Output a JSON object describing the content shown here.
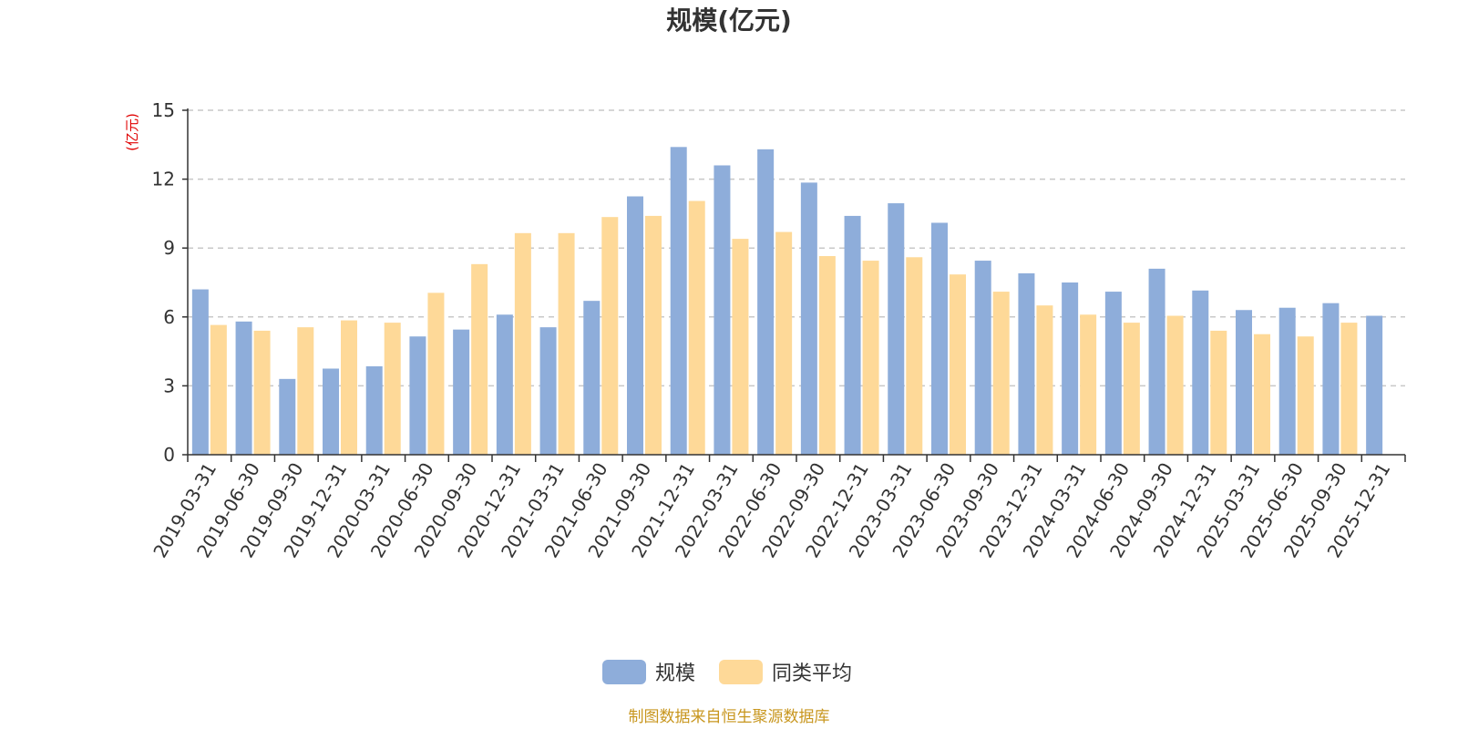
{
  "chart_data": {
    "type": "bar",
    "title": "规模(亿元)",
    "ylabel": "(亿元)",
    "ylim": [
      0,
      15
    ],
    "yticks": [
      "0",
      "3",
      "6",
      "9",
      "12",
      "15"
    ],
    "grid": true,
    "legend_position": "bottom-center",
    "categories": [
      "2019-03-31",
      "2019-06-30",
      "2019-09-30",
      "2019-12-31",
      "2020-03-31",
      "2020-06-30",
      "2020-09-30",
      "2020-12-31",
      "2021-03-31",
      "2021-06-30",
      "2021-09-30",
      "2021-12-31",
      "2022-03-31",
      "2022-06-30",
      "2022-09-30",
      "2022-12-31",
      "2023-03-31",
      "2023-06-30",
      "2023-09-30",
      "2023-12-31",
      "2024-03-31",
      "2024-06-30",
      "2024-09-30",
      "2024-12-31",
      "2025-03-31",
      "2025-06-30",
      "2025-09-30",
      "2025-12-31"
    ],
    "series": [
      {
        "name": "规模",
        "color": "#8eadda",
        "values": [
          7.2,
          5.8,
          3.3,
          3.75,
          3.85,
          5.15,
          5.45,
          6.1,
          5.55,
          6.7,
          11.25,
          13.4,
          12.6,
          13.3,
          11.85,
          10.4,
          10.95,
          10.1,
          8.45,
          7.9,
          7.5,
          7.1,
          8.1,
          7.15,
          6.3,
          6.4,
          6.6,
          6.05
        ]
      },
      {
        "name": "同类平均",
        "color": "#fed998",
        "values": [
          5.65,
          5.4,
          5.55,
          5.85,
          5.75,
          7.05,
          8.3,
          9.65,
          9.65,
          10.35,
          10.4,
          11.05,
          9.4,
          9.7,
          8.65,
          8.45,
          8.6,
          7.85,
          7.1,
          6.5,
          6.1,
          5.75,
          6.05,
          5.4,
          5.25,
          5.15,
          5.75,
          null
        ]
      }
    ]
  },
  "source_note": "制图数据来自恒生聚源数据库"
}
